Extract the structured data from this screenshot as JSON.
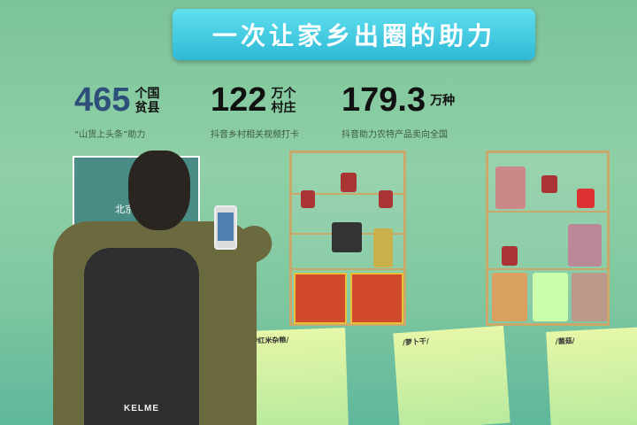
{
  "banner": {
    "title": "一次让家乡出圈的助力"
  },
  "stats": [
    {
      "number": "465",
      "unit": "个国贫县",
      "caption": "“山货上头条”助力"
    },
    {
      "number": "122",
      "unit": "万个村庄",
      "caption": "抖音乡村相关视频打卡"
    },
    {
      "number": "179.3",
      "unit": "万种",
      "caption": "抖音助力农特产品卖向全国"
    }
  ],
  "map": {
    "label": "北京"
  },
  "backpack": {
    "brand": "KELME"
  },
  "cards": [
    {
      "title": "/红米杂粮/"
    },
    {
      "title": "/萝卜干/"
    },
    {
      "title": "/菌菇/"
    }
  ],
  "colors": {
    "background": "#8fd0a6",
    "banner": "#2fb8d6",
    "shelf": "#c9a86a"
  }
}
